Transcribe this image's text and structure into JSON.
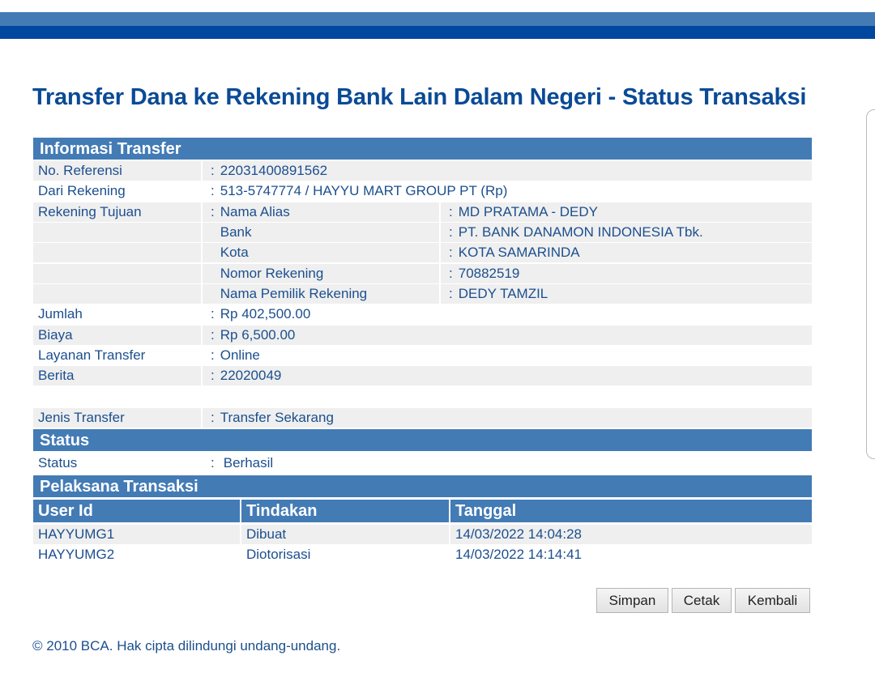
{
  "title": "Transfer Dana ke Rekening Bank Lain Dalam Negeri - Status Transaksi",
  "colors": {
    "header": "#437bb5",
    "top_dark": "#0047a0",
    "text": "#1c4f8e"
  },
  "info": {
    "heading": "Informasi Transfer",
    "no_ref": {
      "label": "No. Referensi",
      "value": "22031400891562"
    },
    "dari": {
      "label": "Dari Rekening",
      "value": "513-5747774 / HAYYU MART GROUP PT  (Rp)"
    },
    "tujuan": {
      "label": "Rekening Tujuan",
      "fields": [
        {
          "label": "Nama Alias",
          "value": "MD PRATAMA - DEDY"
        },
        {
          "label": "Bank",
          "value": "PT. BANK DANAMON INDONESIA Tbk."
        },
        {
          "label": "Kota",
          "value": "KOTA SAMARINDA"
        },
        {
          "label": "Nomor Rekening",
          "value": "70882519"
        },
        {
          "label": "Nama Pemilik Rekening",
          "value": "DEDY TAMZIL"
        }
      ]
    },
    "jumlah": {
      "label": "Jumlah",
      "value": "Rp 402,500.00"
    },
    "biaya": {
      "label": "Biaya",
      "value": "Rp 6,500.00"
    },
    "layanan": {
      "label": "Layanan Transfer",
      "value": "Online"
    },
    "berita": {
      "label": "Berita",
      "value": "22020049"
    },
    "jenis": {
      "label": "Jenis Transfer",
      "value": "Transfer Sekarang"
    }
  },
  "status": {
    "heading": "Status",
    "label": "Status",
    "value": "Berhasil"
  },
  "pelaksana": {
    "heading": "Pelaksana Transaksi",
    "columns": [
      "User Id",
      "Tindakan",
      "Tanggal"
    ],
    "rows": [
      [
        "HAYYUMG1",
        "Dibuat",
        "14/03/2022 14:04:28"
      ],
      [
        "HAYYUMG2",
        "Diotorisasi",
        "14/03/2022 14:14:41"
      ]
    ]
  },
  "buttons": {
    "simpan": "Simpan",
    "cetak": "Cetak",
    "kembali": "Kembali"
  },
  "footer": "©  2010 BCA. Hak cipta dilindungi undang-undang."
}
